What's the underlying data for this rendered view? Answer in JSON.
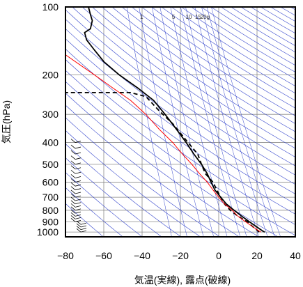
{
  "chart_data": {
    "type": "line",
    "title": "",
    "xlabel": "気温(実線), 露点(破線)",
    "ylabel": "気圧(hPa)",
    "xlim": [
      -80,
      40
    ],
    "ylim": [
      1050,
      100
    ],
    "yscale": "log",
    "x_ticks": [
      -80,
      -60,
      -40,
      -20,
      0,
      20,
      40
    ],
    "y_ticks": [
      100,
      200,
      300,
      400,
      500,
      600,
      700,
      800,
      900,
      1000
    ],
    "mixing_ratio_labels": [
      "1",
      "5",
      "10",
      "15",
      "20g"
    ],
    "grid": true,
    "series": [
      {
        "key": "temperature",
        "style": "solid",
        "color": "#000000",
        "points": [
          [
            24,
            1000
          ],
          [
            23,
            990
          ],
          [
            20,
            950
          ],
          [
            16,
            900
          ],
          [
            12,
            850
          ],
          [
            8,
            800
          ],
          [
            4,
            750
          ],
          [
            1,
            700
          ],
          [
            -2,
            650
          ],
          [
            -4,
            600
          ],
          [
            -6,
            550
          ],
          [
            -9,
            500
          ],
          [
            -13,
            450
          ],
          [
            -17,
            400
          ],
          [
            -22,
            350
          ],
          [
            -28,
            300
          ],
          [
            -34,
            260
          ],
          [
            -42,
            230
          ],
          [
            -52,
            200
          ],
          [
            -60,
            175
          ],
          [
            -65,
            155
          ],
          [
            -69,
            140
          ],
          [
            -70,
            130
          ],
          [
            -67,
            125
          ],
          [
            -66,
            115
          ],
          [
            -67,
            108
          ],
          [
            -68,
            100
          ]
        ]
      },
      {
        "key": "dewpoint",
        "style": "dashed",
        "color": "#000000",
        "points": [
          [
            21,
            1000
          ],
          [
            20,
            980
          ],
          [
            18,
            950
          ],
          [
            15,
            900
          ],
          [
            10,
            850
          ],
          [
            6,
            800
          ],
          [
            3,
            750
          ],
          [
            1,
            700
          ],
          [
            -1,
            650
          ],
          [
            -3,
            600
          ],
          [
            -7,
            550
          ],
          [
            -9,
            500
          ],
          [
            -11,
            450
          ],
          [
            -16,
            400
          ],
          [
            -24,
            330
          ],
          [
            -31,
            290
          ],
          [
            -38,
            250
          ],
          [
            -46,
            240
          ],
          [
            -80,
            240
          ]
        ]
      },
      {
        "key": "parcel",
        "style": "solid",
        "color": "#ff0000",
        "points": [
          [
            22,
            1000
          ],
          [
            18,
            950
          ],
          [
            14,
            900
          ],
          [
            10,
            850
          ],
          [
            7,
            800
          ],
          [
            3,
            750
          ],
          [
            0,
            700
          ],
          [
            -3,
            650
          ],
          [
            -6,
            600
          ],
          [
            -10,
            550
          ],
          [
            -14,
            500
          ],
          [
            -19,
            450
          ],
          [
            -24,
            400
          ],
          [
            -31,
            350
          ],
          [
            -38,
            300
          ],
          [
            -46,
            260
          ],
          [
            -55,
            230
          ],
          [
            -65,
            200
          ],
          [
            -80,
            163
          ]
        ]
      }
    ],
    "dry_adiabats_theta_K": [
      210,
      220,
      230,
      240,
      250,
      260,
      270,
      280,
      290,
      300,
      310,
      320,
      330,
      340,
      350,
      360,
      370,
      380,
      390,
      400,
      410,
      420,
      430,
      440,
      450,
      460,
      470,
      480,
      490,
      500,
      510,
      520,
      530,
      540,
      550,
      560,
      570,
      580,
      590,
      600
    ],
    "mixing_ratio_lines_gkg": [
      0.5,
      1,
      2,
      3,
      5,
      8,
      10,
      15,
      20,
      25,
      30
    ]
  }
}
